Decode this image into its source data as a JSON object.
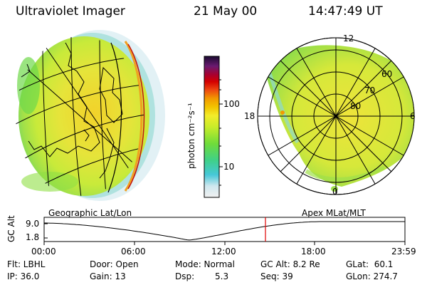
{
  "header": {
    "title": "Ultraviolet Imager",
    "date": "21 May 00",
    "time": "14:47:49 UT"
  },
  "colorbar": {
    "unit_label": "photon cm⁻²s⁻¹",
    "ticks": [
      "100",
      "10"
    ],
    "scale": "log"
  },
  "polar_plot": {
    "mlt_labels": [
      "12",
      "18",
      "6",
      "0"
    ],
    "lat_labels": [
      "60",
      "70",
      "80"
    ]
  },
  "panels": {
    "left_caption": "Geographic Lat/Lon",
    "right_caption": "Apex MLat/MLT"
  },
  "timeline": {
    "ylabel": "GC Alt",
    "y_ticks": [
      "9.0",
      "1.8"
    ],
    "x_ticks": [
      "00:00",
      "06:00",
      "12:00",
      "18:00",
      "23:59"
    ],
    "marker_color": "#e00000"
  },
  "footer": {
    "flt": "Flt: LBHL",
    "ip": "IP: 36.0",
    "door": "Door: Open",
    "gain": "Gain: 13",
    "mode": "Mode: Normal",
    "dsp_label": "Dsp:",
    "dsp_value": "5.3",
    "gc_alt": "GC Alt: 8.2 Re",
    "seq": "Seq: 39",
    "glat": "GLat:  60.1",
    "glon": "GLon: 274.7"
  }
}
